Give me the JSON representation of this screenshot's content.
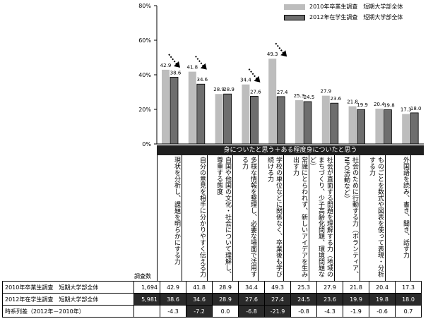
{
  "chart_data": {
    "type": "bar",
    "ylim": [
      0,
      80
    ],
    "yticks": [
      "0%",
      "20%",
      "40%",
      "60%",
      "80%"
    ],
    "banner": "身についたと思う＋ある程度身についたと思う",
    "categories": [
      "現状を分析し、課題を明らかにする力",
      "自分の意見を相手に分かりやすく伝える力",
      "自国や他国の文化・社会について理解し、尊重する態度",
      "多様な情報を整理し、必要な場面で活用する力",
      "学校の単位などに関係なく、卒業後も学び続ける力",
      "常識にとらわれず、新しいアイデアを生み出す力",
      "社会が直面する問題を理解する力（地域のまちづくり、少子高齢化問題、環境問題など）",
      "社会のために行動する力（ボランティア、NPO活動など）",
      "ものごとを数式や図表を使って表現・分析する力",
      "外国語を読み、書き、聞き、話す力"
    ],
    "series": [
      {
        "name": "2010年卒業生調査　短期大学部全体",
        "color": "#bdbdbd",
        "values": [
          42.9,
          41.8,
          28.9,
          34.4,
          49.3,
          25.3,
          27.9,
          21.8,
          20.4,
          17.3
        ]
      },
      {
        "name": "2012年在学生調査　短期大学部全体",
        "color": "#6e6e6e",
        "values": [
          38.6,
          34.6,
          28.9,
          27.6,
          27.4,
          24.5,
          23.6,
          19.9,
          19.8,
          18.0
        ]
      }
    ],
    "arrows": [
      true,
      true,
      false,
      true,
      true,
      false,
      false,
      false,
      false,
      false
    ]
  },
  "table": {
    "count_header": "調査数",
    "rows": [
      {
        "label": "2010年卒業生調査　短期大学部全体",
        "n": "1,694",
        "values": [
          "42.9",
          "41.8",
          "28.9",
          "34.4",
          "49.3",
          "25.3",
          "27.9",
          "21.8",
          "20.4",
          "17.3"
        ]
      },
      {
        "label": "2012年在学生調査　短期大学部全体",
        "n": "5,981",
        "values": [
          "38.6",
          "34.6",
          "28.9",
          "27.6",
          "27.4",
          "24.5",
          "23.6",
          "19.9",
          "19.8",
          "18.0"
        ]
      },
      {
        "label": "時系列差（2012年－2010年）",
        "n": "",
        "values": [
          "-4.3",
          "-7.2",
          "0.0",
          "-6.8",
          "-21.9",
          "-0.8",
          "-4.3",
          "-1.9",
          "-0.6",
          "0.7"
        ],
        "highlight": [
          false,
          true,
          false,
          true,
          true,
          false,
          false,
          false,
          false,
          false
        ]
      }
    ]
  }
}
